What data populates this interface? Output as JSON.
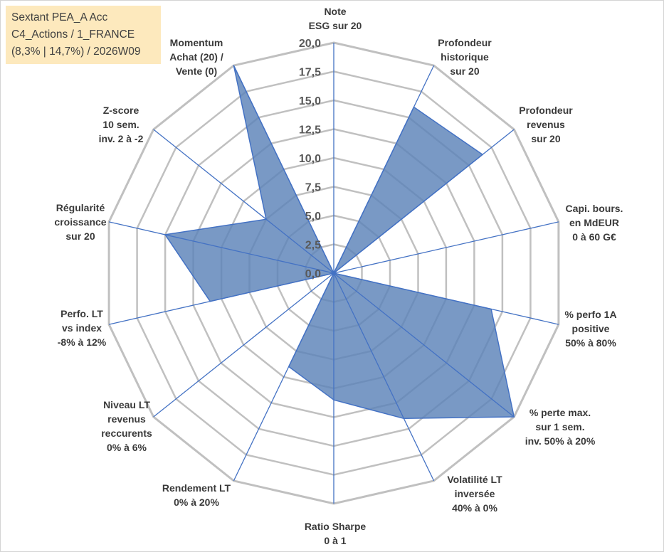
{
  "title_box": {
    "line1": "Sextant PEA_A Acc",
    "line2": "C4_Actions / 1_FRANCE",
    "line3": "(8,3% | 14,7%) / 2026W09"
  },
  "colors": {
    "grid": "#c0c0c0",
    "spoke": "#4472c4",
    "fill": "#5b83b8",
    "stroke": "#4472c4",
    "title_bg": "#fde9bd"
  },
  "chart_data": {
    "type": "radar",
    "rmax": 20,
    "tick_step": 2.5,
    "tick_labels": [
      "0,0",
      "2,5",
      "5,0",
      "7,5",
      "10,0",
      "12,5",
      "15,0",
      "17,5",
      "20,0"
    ],
    "axes": [
      {
        "label": [
          "Note",
          "ESG sur 20"
        ],
        "value": 0
      },
      {
        "label": [
          "Profondeur",
          "historique",
          "sur 20"
        ],
        "value": 16
      },
      {
        "label": [
          "Profondeur",
          "revenus",
          "sur 20"
        ],
        "value": 16.5
      },
      {
        "label": [
          "Capi. bours.",
          "en MdEUR",
          "0 à 60 G€"
        ],
        "value": 0
      },
      {
        "label": [
          "% perfo 1A",
          "positive",
          "50% à 80%"
        ],
        "value": 14
      },
      {
        "label": [
          "% perte max.",
          "sur 1 sem.",
          "inv. 50% à 20%"
        ],
        "value": 20
      },
      {
        "label": [
          "Volatilité LT",
          "inversée",
          "40% à 0%"
        ],
        "value": 14
      },
      {
        "label": [
          "Ratio Sharpe",
          "0 à 1"
        ],
        "value": 11
      },
      {
        "label": [
          "Rendement LT",
          "0% à 20%"
        ],
        "value": 9
      },
      {
        "label": [
          "Niveau LT",
          "revenus",
          "reccurents",
          "0% à 6%"
        ],
        "value": 0
      },
      {
        "label": [
          "Perfo. LT",
          "vs index",
          "-8% à 12%"
        ],
        "value": 11
      },
      {
        "label": [
          "Régularité",
          "croissance",
          "sur 20"
        ],
        "value": 15
      },
      {
        "label": [
          "Z-score",
          "10 sem.",
          "inv. 2 à -2"
        ],
        "value": 7.5
      },
      {
        "label": [
          "Momentum",
          "Achat (20) /",
          "Vente (0)"
        ],
        "value": 20
      }
    ]
  }
}
